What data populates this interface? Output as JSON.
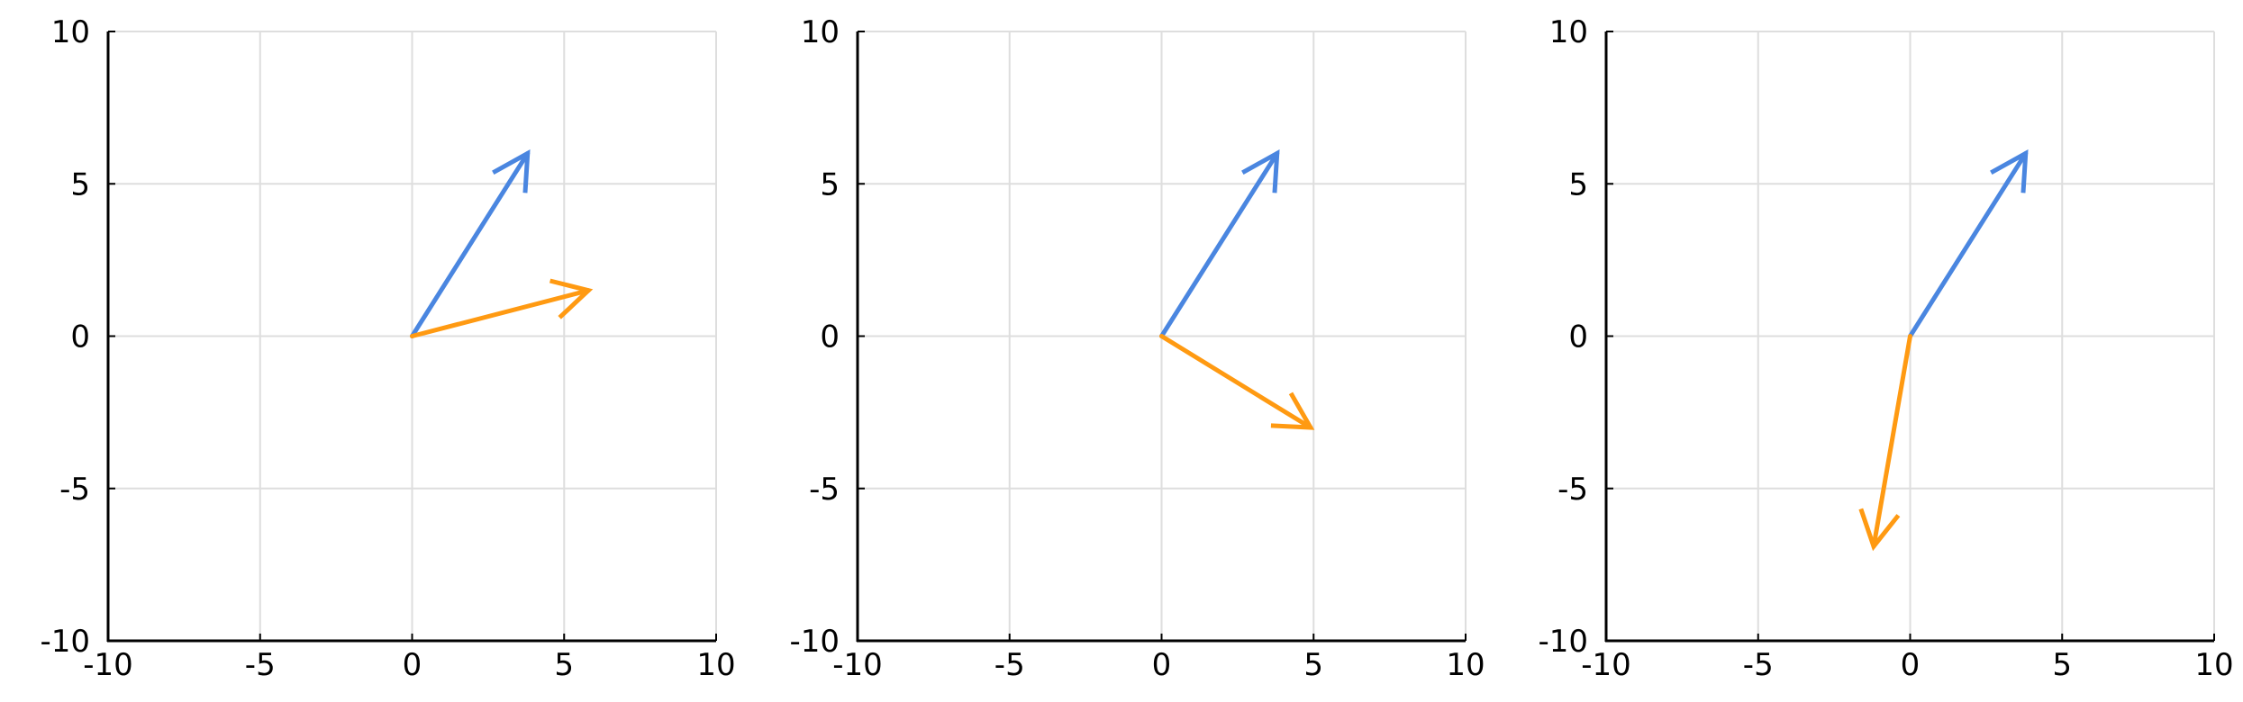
{
  "chart_data": [
    {
      "type": "quiver",
      "title": "",
      "xlabel": "",
      "ylabel": "",
      "xlim": [
        -10,
        10
      ],
      "ylim": [
        -10,
        10
      ],
      "xticks": [
        -10,
        -5,
        0,
        5,
        10
      ],
      "yticks": [
        -10,
        -5,
        0,
        5,
        10
      ],
      "xtick_labels": [
        "-10",
        "-5",
        "0",
        "5",
        "10"
      ],
      "ytick_labels": [
        "-10",
        "-5",
        "0",
        "5",
        "10"
      ],
      "grid": true,
      "legend": false,
      "series": [
        {
          "color": "#4a86e0",
          "x0": 0,
          "y0": 0,
          "x1": 3.8,
          "y1": 6.0
        },
        {
          "color": "#ff9a12",
          "x0": 0,
          "y0": 0,
          "x1": 5.8,
          "y1": 1.5
        }
      ]
    },
    {
      "type": "quiver",
      "title": "",
      "xlabel": "",
      "ylabel": "",
      "xlim": [
        -10,
        10
      ],
      "ylim": [
        -10,
        10
      ],
      "xticks": [
        -10,
        -5,
        0,
        5,
        10
      ],
      "yticks": [
        -10,
        -5,
        0,
        5,
        10
      ],
      "xtick_labels": [
        "-10",
        "-5",
        "0",
        "5",
        "10"
      ],
      "ytick_labels": [
        "-10",
        "-5",
        "0",
        "5",
        "10"
      ],
      "grid": true,
      "legend": false,
      "series": [
        {
          "color": "#4a86e0",
          "x0": 0,
          "y0": 0,
          "x1": 3.8,
          "y1": 6.0
        },
        {
          "color": "#ff9a12",
          "x0": 0,
          "y0": 0,
          "x1": 4.9,
          "y1": -3.0
        }
      ]
    },
    {
      "type": "quiver",
      "title": "",
      "xlabel": "",
      "ylabel": "",
      "xlim": [
        -10,
        10
      ],
      "ylim": [
        -10,
        10
      ],
      "xticks": [
        -10,
        -5,
        0,
        5,
        10
      ],
      "yticks": [
        -10,
        -5,
        0,
        5,
        10
      ],
      "xtick_labels": [
        "-10",
        "-5",
        "0",
        "5",
        "10"
      ],
      "ytick_labels": [
        "-10",
        "-5",
        "0",
        "5",
        "10"
      ],
      "grid": true,
      "legend": false,
      "series": [
        {
          "color": "#4a86e0",
          "x0": 0,
          "y0": 0,
          "x1": 3.8,
          "y1": 6.0
        },
        {
          "color": "#ff9a12",
          "x0": 0,
          "y0": 0,
          "x1": -1.2,
          "y1": -6.9
        }
      ]
    }
  ]
}
